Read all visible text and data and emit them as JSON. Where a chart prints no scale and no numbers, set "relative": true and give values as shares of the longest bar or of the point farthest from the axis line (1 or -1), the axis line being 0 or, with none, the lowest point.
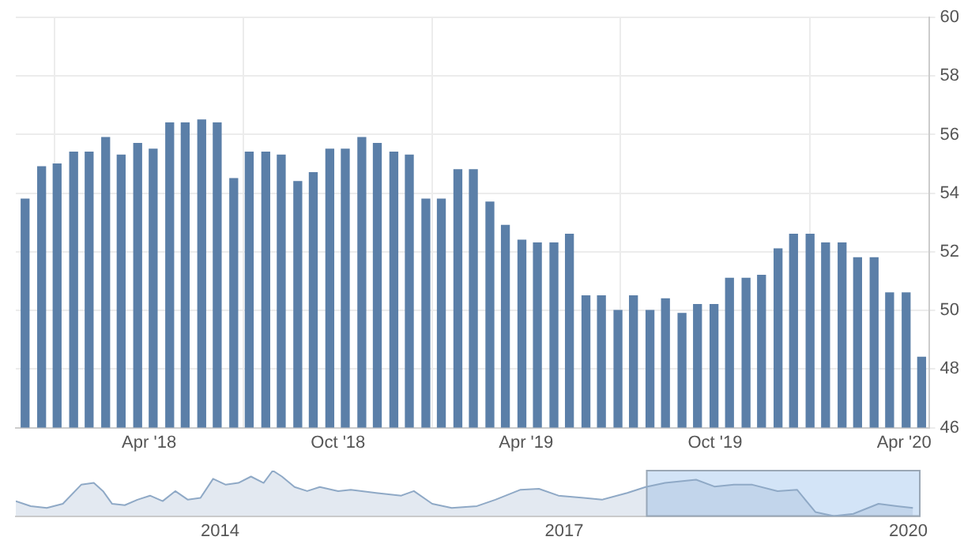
{
  "chart_data": [
    {
      "type": "bar",
      "x": [
        "2017-12-02",
        "2017-12-18",
        "2018-01-02",
        "2018-01-18",
        "2018-02-02",
        "2018-02-18",
        "2018-03-05",
        "2018-03-21",
        "2018-04-05",
        "2018-04-21",
        "2018-05-06",
        "2018-05-22",
        "2018-06-06",
        "2018-06-22",
        "2018-07-07",
        "2018-07-23",
        "2018-08-07",
        "2018-08-23",
        "2018-09-07",
        "2018-09-23",
        "2018-10-08",
        "2018-10-24",
        "2018-11-08",
        "2018-11-24",
        "2018-12-09",
        "2018-12-25",
        "2019-01-09",
        "2019-01-25",
        "2019-02-09",
        "2019-02-25",
        "2019-03-12",
        "2019-03-28",
        "2019-04-12",
        "2019-04-28",
        "2019-05-13",
        "2019-05-29",
        "2019-06-13",
        "2019-06-29",
        "2019-07-14",
        "2019-07-30",
        "2019-08-14",
        "2019-08-30",
        "2019-09-14",
        "2019-09-30",
        "2019-10-15",
        "2019-10-31",
        "2019-11-15",
        "2019-12-01",
        "2019-12-16",
        "2020-01-01",
        "2020-01-16",
        "2020-02-01",
        "2020-02-16",
        "2020-03-03",
        "2020-03-18",
        "2020-04-03",
        "2020-04-18"
      ],
      "values": [
        53.8,
        54.9,
        55.0,
        55.4,
        55.4,
        55.9,
        55.3,
        55.7,
        55.5,
        56.4,
        56.4,
        56.5,
        56.4,
        54.5,
        55.4,
        55.4,
        55.3,
        54.4,
        54.7,
        55.5,
        55.5,
        55.9,
        55.7,
        55.4,
        55.3,
        53.8,
        53.8,
        54.8,
        54.8,
        53.7,
        52.9,
        52.4,
        52.3,
        52.3,
        52.6,
        50.5,
        50.5,
        50.0,
        50.5,
        50.0,
        50.4,
        49.9,
        50.2,
        50.2,
        51.1,
        51.1,
        51.2,
        52.1,
        52.6,
        52.6,
        52.3,
        52.3,
        51.8,
        51.8,
        50.6,
        50.6,
        48.4
      ],
      "color": "#5b7fa8",
      "xlim": [
        "2017-11-23",
        "2020-04-25"
      ],
      "xticks": [
        {
          "value": "2018-04-01",
          "label": "Apr '18"
        },
        {
          "value": "2018-10-01",
          "label": "Oct '18"
        },
        {
          "value": "2019-04-01",
          "label": "Apr '19"
        },
        {
          "value": "2019-10-01",
          "label": "Oct '19"
        },
        {
          "value": "2020-04-01",
          "label": "Apr '20"
        }
      ],
      "ylim": [
        46,
        60
      ],
      "yticks": [
        46,
        48,
        50,
        52,
        54,
        56,
        58,
        60
      ],
      "grid": true
    },
    {
      "type": "area",
      "relative": true,
      "tick_labels": "x",
      "x": [
        2012.22,
        2012.35,
        2012.49,
        2012.63,
        2012.79,
        2012.9,
        2012.98,
        2013.06,
        2013.17,
        2013.28,
        2013.39,
        2013.5,
        2013.61,
        2013.72,
        2013.83,
        2013.94,
        2014.05,
        2014.16,
        2014.27,
        2014.38,
        2014.46,
        2014.54,
        2014.65,
        2014.76,
        2014.87,
        2015.03,
        2015.14,
        2015.36,
        2015.58,
        2015.69,
        2015.85,
        2016.02,
        2016.24,
        2016.4,
        2016.62,
        2016.78,
        2016.95,
        2017.17,
        2017.33,
        2017.55,
        2017.71,
        2017.88,
        2018.15,
        2018.31,
        2018.48,
        2018.64,
        2018.86,
        2019.03,
        2019.19,
        2019.35,
        2019.52,
        2019.74,
        2019.9,
        2020.04
      ],
      "values": [
        0.33,
        0.22,
        0.18,
        0.27,
        0.69,
        0.73,
        0.55,
        0.27,
        0.24,
        0.36,
        0.45,
        0.33,
        0.55,
        0.36,
        0.4,
        0.82,
        0.69,
        0.73,
        0.87,
        0.73,
        1.0,
        0.87,
        0.64,
        0.55,
        0.64,
        0.55,
        0.58,
        0.51,
        0.45,
        0.55,
        0.27,
        0.18,
        0.22,
        0.36,
        0.58,
        0.6,
        0.45,
        0.4,
        0.36,
        0.51,
        0.64,
        0.73,
        0.8,
        0.65,
        0.69,
        0.69,
        0.55,
        0.58,
        0.09,
        0,
        0.05,
        0.27,
        0.22,
        0.18
      ],
      "color": "#8fa9c6",
      "xlim": [
        2012.22,
        2020.1
      ],
      "xticks": [
        2014,
        2017,
        2020
      ],
      "bands": [
        {
          "axis": "x",
          "from": 2017.72,
          "to": 2020.1,
          "color": "#d3e4f7"
        }
      ]
    }
  ]
}
